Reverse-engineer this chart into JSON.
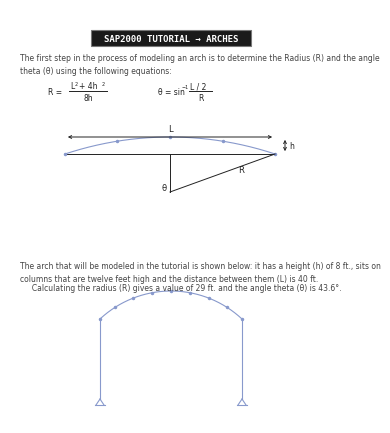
{
  "title": "SAP2000 TUTORIAL → ARCHES",
  "title_bg": "#1a1a1a",
  "title_color": "#ffffff",
  "body_text1": "The first step in the process of modeling an arch is to determine the Radius (R) and the angle\ntheta (θ) using the following equations:",
  "body_text2": "The arch that will be modeled in the tutorial is shown below: it has a height (h) of 8 ft., sits on\ncolumns that are twelve feet high and the distance between them (L) is 40 ft.",
  "body_text3": "     Calculating the radius (R) gives a value of 29 ft. and the angle theta (θ) is 43.6°.",
  "bg_color": "#ffffff",
  "diagram_color": "#8899cc",
  "text_color": "#444444",
  "dark_color": "#222222"
}
